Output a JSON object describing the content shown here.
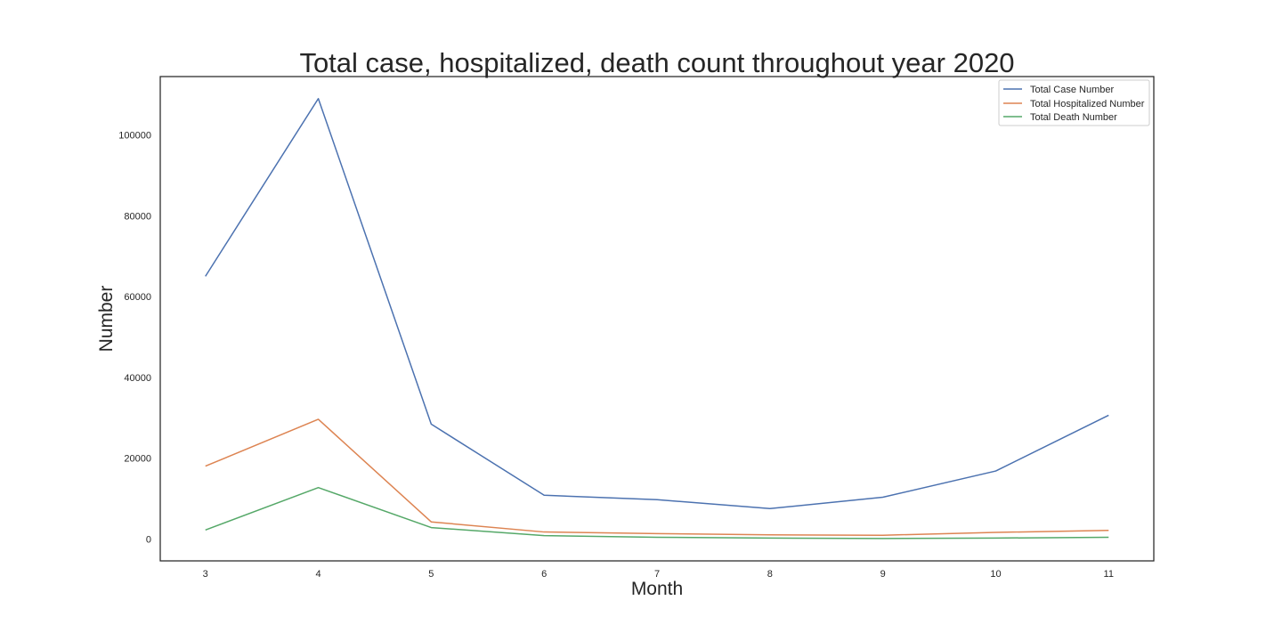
{
  "chart_data": {
    "type": "line",
    "title": "Total case, hospitalized, death count throughout year 2020",
    "xlabel": "Month",
    "ylabel": "Number",
    "x": [
      3,
      4,
      5,
      6,
      7,
      8,
      9,
      10,
      11
    ],
    "xlim": [
      2.6,
      11.4
    ],
    "ylim": [
      -5450,
      114450
    ],
    "yticks": [
      0,
      20000,
      40000,
      60000,
      80000,
      100000
    ],
    "grid": false,
    "legend_position": "top-right",
    "series": [
      {
        "name": "Total Case Number",
        "color": "#4c72b0",
        "values": [
          65000,
          109000,
          28400,
          10800,
          9700,
          7500,
          10300,
          16800,
          30600
        ]
      },
      {
        "name": "Total Hospitalized Number",
        "color": "#dd8452",
        "values": [
          18000,
          29600,
          4200,
          1700,
          1300,
          1000,
          900,
          1600,
          2100
        ]
      },
      {
        "name": "Total Death Number",
        "color": "#55a868",
        "values": [
          2200,
          12700,
          2800,
          800,
          400,
          200,
          100,
          200,
          400
        ]
      }
    ]
  }
}
